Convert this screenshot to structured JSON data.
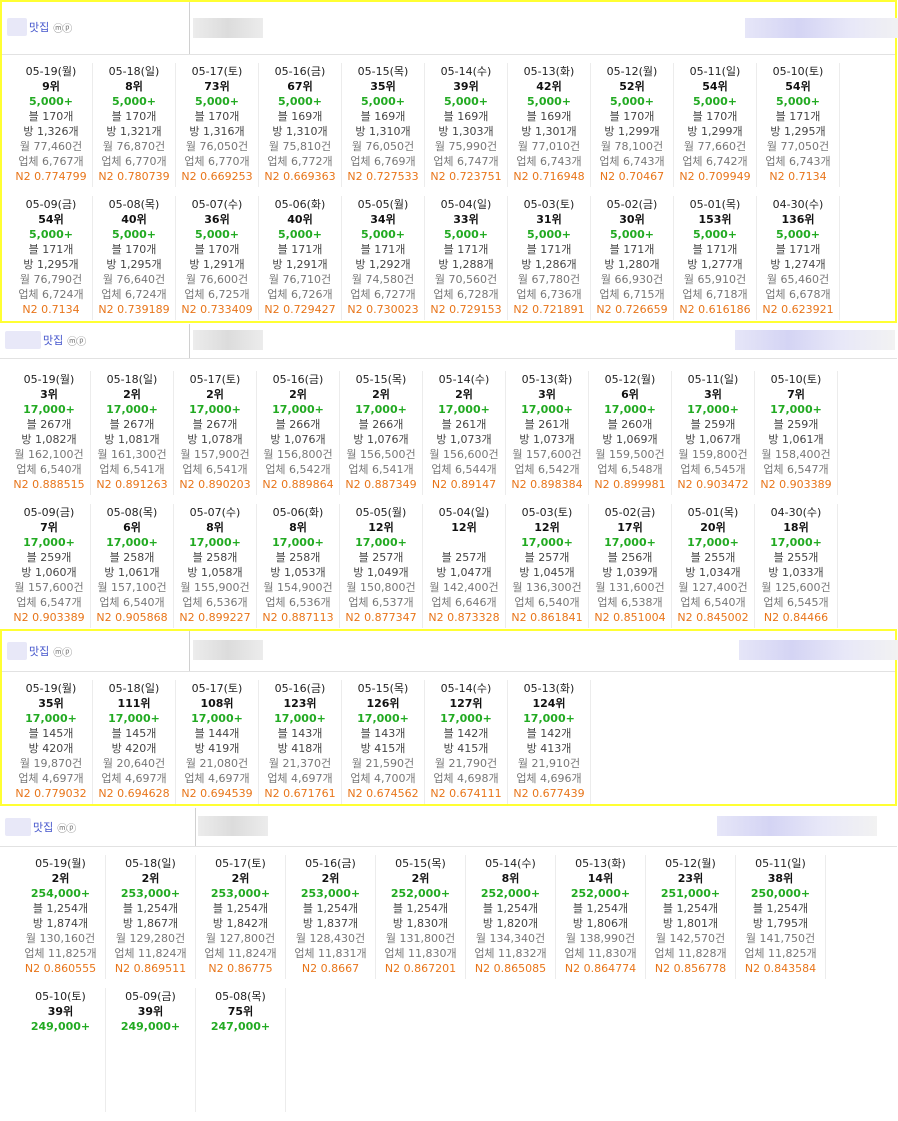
{
  "sections": [
    {
      "keyword": "맛집",
      "icons": "ⓜⓟ",
      "highlight": true,
      "days": [
        {
          "date": "05-19(월)",
          "rank": "9위",
          "searches": "5,000+",
          "blog": "블 170개",
          "visit": "방 1,326개",
          "month": "월 77,460건",
          "biz": "업체 6,767개",
          "n2": "N2 0.774799"
        },
        {
          "date": "05-18(일)",
          "rank": "8위",
          "searches": "5,000+",
          "blog": "블 170개",
          "visit": "방 1,321개",
          "month": "월 76,870건",
          "biz": "업체 6,770개",
          "n2": "N2 0.780739"
        },
        {
          "date": "05-17(토)",
          "rank": "73위",
          "searches": "5,000+",
          "blog": "블 170개",
          "visit": "방 1,316개",
          "month": "월 76,050건",
          "biz": "업체 6,770개",
          "n2": "N2 0.669253"
        },
        {
          "date": "05-16(금)",
          "rank": "67위",
          "searches": "5,000+",
          "blog": "블 169개",
          "visit": "방 1,310개",
          "month": "월 75,810건",
          "biz": "업체 6,772개",
          "n2": "N2 0.669363"
        },
        {
          "date": "05-15(목)",
          "rank": "35위",
          "searches": "5,000+",
          "blog": "블 169개",
          "visit": "방 1,310개",
          "month": "월 76,050건",
          "biz": "업체 6,769개",
          "n2": "N2 0.727533"
        },
        {
          "date": "05-14(수)",
          "rank": "39위",
          "searches": "5,000+",
          "blog": "블 169개",
          "visit": "방 1,303개",
          "month": "월 75,990건",
          "biz": "업체 6,747개",
          "n2": "N2 0.723751"
        },
        {
          "date": "05-13(화)",
          "rank": "42위",
          "searches": "5,000+",
          "blog": "블 169개",
          "visit": "방 1,301개",
          "month": "월 77,010건",
          "biz": "업체 6,743개",
          "n2": "N2 0.716948"
        },
        {
          "date": "05-12(월)",
          "rank": "52위",
          "searches": "5,000+",
          "blog": "블 170개",
          "visit": "방 1,299개",
          "month": "월 78,100건",
          "biz": "업체 6,743개",
          "n2": "N2 0.70467"
        },
        {
          "date": "05-11(일)",
          "rank": "54위",
          "searches": "5,000+",
          "blog": "블 170개",
          "visit": "방 1,299개",
          "month": "월 77,660건",
          "biz": "업체 6,742개",
          "n2": "N2 0.709949"
        },
        {
          "date": "05-10(토)",
          "rank": "54위",
          "searches": "5,000+",
          "blog": "블 171개",
          "visit": "방 1,295개",
          "month": "월 77,050건",
          "biz": "업체 6,743개",
          "n2": "N2 0.7134"
        },
        {
          "date": "05-09(금)",
          "rank": "54위",
          "searches": "5,000+",
          "blog": "블 171개",
          "visit": "방 1,295개",
          "month": "월 76,790건",
          "biz": "업체 6,724개",
          "n2": "N2 0.7134"
        },
        {
          "date": "05-08(목)",
          "rank": "40위",
          "searches": "5,000+",
          "blog": "블 170개",
          "visit": "방 1,295개",
          "month": "월 76,640건",
          "biz": "업체 6,724개",
          "n2": "N2 0.739189"
        },
        {
          "date": "05-07(수)",
          "rank": "36위",
          "searches": "5,000+",
          "blog": "블 170개",
          "visit": "방 1,291개",
          "month": "월 76,600건",
          "biz": "업체 6,725개",
          "n2": "N2 0.733409"
        },
        {
          "date": "05-06(화)",
          "rank": "40위",
          "searches": "5,000+",
          "blog": "블 171개",
          "visit": "방 1,291개",
          "month": "월 76,710건",
          "biz": "업체 6,726개",
          "n2": "N2 0.729427"
        },
        {
          "date": "05-05(월)",
          "rank": "34위",
          "searches": "5,000+",
          "blog": "블 171개",
          "visit": "방 1,292개",
          "month": "월 74,580건",
          "biz": "업체 6,727개",
          "n2": "N2 0.730023"
        },
        {
          "date": "05-04(일)",
          "rank": "33위",
          "searches": "5,000+",
          "blog": "블 171개",
          "visit": "방 1,288개",
          "month": "월 70,560건",
          "biz": "업체 6,728개",
          "n2": "N2 0.729153"
        },
        {
          "date": "05-03(토)",
          "rank": "31위",
          "searches": "5,000+",
          "blog": "블 171개",
          "visit": "방 1,286개",
          "month": "월 67,780건",
          "biz": "업체 6,736개",
          "n2": "N2 0.721891"
        },
        {
          "date": "05-02(금)",
          "rank": "30위",
          "searches": "5,000+",
          "blog": "블 171개",
          "visit": "방 1,280개",
          "month": "월 66,930건",
          "biz": "업체 6,715개",
          "n2": "N2 0.726659"
        },
        {
          "date": "05-01(목)",
          "rank": "153위",
          "searches": "5,000+",
          "blog": "블 171개",
          "visit": "방 1,277개",
          "month": "월 65,910건",
          "biz": "업체 6,718개",
          "n2": "N2 0.616186"
        },
        {
          "date": "04-30(수)",
          "rank": "136위",
          "searches": "5,000+",
          "blog": "블 171개",
          "visit": "방 1,274개",
          "month": "월 65,460건",
          "biz": "업체 6,678개",
          "n2": "N2 0.623921"
        }
      ]
    },
    {
      "keyword": "맛집",
      "icons": "ⓜⓟ",
      "highlight": false,
      "days": [
        {
          "date": "05-19(월)",
          "rank": "3위",
          "searches": "17,000+",
          "blog": "블 267개",
          "visit": "방 1,082개",
          "month": "월 162,100건",
          "biz": "업체 6,540개",
          "n2": "N2 0.888515"
        },
        {
          "date": "05-18(일)",
          "rank": "2위",
          "searches": "17,000+",
          "blog": "블 267개",
          "visit": "방 1,081개",
          "month": "월 161,300건",
          "biz": "업체 6,541개",
          "n2": "N2 0.891263"
        },
        {
          "date": "05-17(토)",
          "rank": "2위",
          "searches": "17,000+",
          "blog": "블 267개",
          "visit": "방 1,078개",
          "month": "월 157,900건",
          "biz": "업체 6,541개",
          "n2": "N2 0.890203"
        },
        {
          "date": "05-16(금)",
          "rank": "2위",
          "searches": "17,000+",
          "blog": "블 266개",
          "visit": "방 1,076개",
          "month": "월 156,800건",
          "biz": "업체 6,542개",
          "n2": "N2 0.889864"
        },
        {
          "date": "05-15(목)",
          "rank": "2위",
          "searches": "17,000+",
          "blog": "블 266개",
          "visit": "방 1,076개",
          "month": "월 156,500건",
          "biz": "업체 6,541개",
          "n2": "N2 0.887349"
        },
        {
          "date": "05-14(수)",
          "rank": "2위",
          "searches": "17,000+",
          "blog": "블 261개",
          "visit": "방 1,073개",
          "month": "월 156,600건",
          "biz": "업체 6,544개",
          "n2": "N2 0.89147"
        },
        {
          "date": "05-13(화)",
          "rank": "3위",
          "searches": "17,000+",
          "blog": "블 261개",
          "visit": "방 1,073개",
          "month": "월 157,600건",
          "biz": "업체 6,542개",
          "n2": "N2 0.898384"
        },
        {
          "date": "05-12(월)",
          "rank": "6위",
          "searches": "17,000+",
          "blog": "블 260개",
          "visit": "방 1,069개",
          "month": "월 159,500건",
          "biz": "업체 6,548개",
          "n2": "N2 0.899981"
        },
        {
          "date": "05-11(일)",
          "rank": "3위",
          "searches": "17,000+",
          "blog": "블 259개",
          "visit": "방 1,067개",
          "month": "월 159,800건",
          "biz": "업체 6,545개",
          "n2": "N2 0.903472"
        },
        {
          "date": "05-10(토)",
          "rank": "7위",
          "searches": "17,000+",
          "blog": "블 259개",
          "visit": "방 1,061개",
          "month": "월 158,400건",
          "biz": "업체 6,547개",
          "n2": "N2 0.903389"
        },
        {
          "date": "05-09(금)",
          "rank": "7위",
          "searches": "17,000+",
          "blog": "블 259개",
          "visit": "방 1,060개",
          "month": "월 157,600건",
          "biz": "업체 6,547개",
          "n2": "N2 0.903389"
        },
        {
          "date": "05-08(목)",
          "rank": "6위",
          "searches": "17,000+",
          "blog": "블 258개",
          "visit": "방 1,061개",
          "month": "월 157,100건",
          "biz": "업체 6,540개",
          "n2": "N2 0.905868"
        },
        {
          "date": "05-07(수)",
          "rank": "8위",
          "searches": "17,000+",
          "blog": "블 258개",
          "visit": "방 1,058개",
          "month": "월 155,900건",
          "biz": "업체 6,536개",
          "n2": "N2 0.899227"
        },
        {
          "date": "05-06(화)",
          "rank": "8위",
          "searches": "17,000+",
          "blog": "블 258개",
          "visit": "방 1,053개",
          "month": "월 154,900건",
          "biz": "업체 6,536개",
          "n2": "N2 0.887113"
        },
        {
          "date": "05-05(월)",
          "rank": "12위",
          "searches": "17,000+",
          "blog": "블 257개",
          "visit": "방 1,049개",
          "month": "월 150,800건",
          "biz": "업체 6,537개",
          "n2": "N2 0.877347"
        },
        {
          "date": "05-04(일)",
          "rank": "12위",
          "searches": "",
          "blog": "블 257개",
          "visit": "방 1,047개",
          "month": "월 142,400건",
          "biz": "업체 6,646개",
          "n2": "N2 0.873328"
        },
        {
          "date": "05-03(토)",
          "rank": "12위",
          "searches": "17,000+",
          "blog": "블 257개",
          "visit": "방 1,045개",
          "month": "월 136,300건",
          "biz": "업체 6,540개",
          "n2": "N2 0.861841"
        },
        {
          "date": "05-02(금)",
          "rank": "17위",
          "searches": "17,000+",
          "blog": "블 256개",
          "visit": "방 1,039개",
          "month": "월 131,600건",
          "biz": "업체 6,538개",
          "n2": "N2 0.851004"
        },
        {
          "date": "05-01(목)",
          "rank": "20위",
          "searches": "17,000+",
          "blog": "블 255개",
          "visit": "방 1,034개",
          "month": "월 127,400건",
          "biz": "업체 6,540개",
          "n2": "N2 0.845002"
        },
        {
          "date": "04-30(수)",
          "rank": "18위",
          "searches": "17,000+",
          "blog": "블 255개",
          "visit": "방 1,033개",
          "month": "월 125,600건",
          "biz": "업체 6,545개",
          "n2": "N2 0.84466"
        }
      ]
    },
    {
      "keyword": "맛집",
      "icons": "ⓜⓟ",
      "highlight": true,
      "days": [
        {
          "date": "05-19(월)",
          "rank": "35위",
          "searches": "17,000+",
          "blog": "블 145개",
          "visit": "방 420개",
          "month": "월 19,870건",
          "biz": "업체 4,697개",
          "n2": "N2 0.779032"
        },
        {
          "date": "05-18(일)",
          "rank": "111위",
          "searches": "17,000+",
          "blog": "블 145개",
          "visit": "방 420개",
          "month": "월 20,640건",
          "biz": "업체 4,697개",
          "n2": "N2 0.694628"
        },
        {
          "date": "05-17(토)",
          "rank": "108위",
          "searches": "17,000+",
          "blog": "블 144개",
          "visit": "방 419개",
          "month": "월 21,080건",
          "biz": "업체 4,697개",
          "n2": "N2 0.694539"
        },
        {
          "date": "05-16(금)",
          "rank": "123위",
          "searches": "17,000+",
          "blog": "블 143개",
          "visit": "방 418개",
          "month": "월 21,370건",
          "biz": "업체 4,697개",
          "n2": "N2 0.671761"
        },
        {
          "date": "05-15(목)",
          "rank": "126위",
          "searches": "17,000+",
          "blog": "블 143개",
          "visit": "방 415개",
          "month": "월 21,590건",
          "biz": "업체 4,700개",
          "n2": "N2 0.674562"
        },
        {
          "date": "05-14(수)",
          "rank": "127위",
          "searches": "17,000+",
          "blog": "블 142개",
          "visit": "방 415개",
          "month": "월 21,790건",
          "biz": "업체 4,698개",
          "n2": "N2 0.674111"
        },
        {
          "date": "05-13(화)",
          "rank": "124위",
          "searches": "17,000+",
          "blog": "블 142개",
          "visit": "방 413개",
          "month": "월 21,910건",
          "biz": "업체 4,696개",
          "n2": "N2 0.677439"
        }
      ]
    },
    {
      "keyword": "맛집",
      "icons": "ⓜⓟ",
      "highlight": false,
      "days": [
        {
          "date": "05-19(월)",
          "rank": "2위",
          "searches": "254,000+",
          "blog": "블 1,254개",
          "visit": "방 1,874개",
          "month": "월 130,160건",
          "biz": "업체 11,825개",
          "n2": "N2 0.860555"
        },
        {
          "date": "05-18(일)",
          "rank": "2위",
          "searches": "253,000+",
          "blog": "블 1,254개",
          "visit": "방 1,867개",
          "month": "월 129,280건",
          "biz": "업체 11,824개",
          "n2": "N2 0.869511"
        },
        {
          "date": "05-17(토)",
          "rank": "2위",
          "searches": "253,000+",
          "blog": "블 1,254개",
          "visit": "방 1,842개",
          "month": "월 127,800건",
          "biz": "업체 11,824개",
          "n2": "N2 0.86775"
        },
        {
          "date": "05-16(금)",
          "rank": "2위",
          "searches": "253,000+",
          "blog": "블 1,254개",
          "visit": "방 1,837개",
          "month": "월 128,430건",
          "biz": "업체 11,831개",
          "n2": "N2 0.8667"
        },
        {
          "date": "05-15(목)",
          "rank": "2위",
          "searches": "252,000+",
          "blog": "블 1,254개",
          "visit": "방 1,830개",
          "month": "월 131,800건",
          "biz": "업체 11,830개",
          "n2": "N2 0.867201"
        },
        {
          "date": "05-14(수)",
          "rank": "8위",
          "searches": "252,000+",
          "blog": "블 1,254개",
          "visit": "방 1,820개",
          "month": "월 134,340건",
          "biz": "업체 11,832개",
          "n2": "N2 0.865085"
        },
        {
          "date": "05-13(화)",
          "rank": "14위",
          "searches": "252,000+",
          "blog": "블 1,254개",
          "visit": "방 1,806개",
          "month": "월 138,990건",
          "biz": "업체 11,830개",
          "n2": "N2 0.864774"
        },
        {
          "date": "05-12(월)",
          "rank": "23위",
          "searches": "251,000+",
          "blog": "블 1,254개",
          "visit": "방 1,801개",
          "month": "월 142,570건",
          "biz": "업체 11,828개",
          "n2": "N2 0.856778"
        },
        {
          "date": "05-11(일)",
          "rank": "38위",
          "searches": "250,000+",
          "blog": "블 1,254개",
          "visit": "방 1,795개",
          "month": "월 141,750건",
          "biz": "업체 11,825개",
          "n2": "N2 0.843584"
        },
        {
          "date": "05-10(토)",
          "rank": "39위",
          "searches": "249,000+",
          "blog": "",
          "visit": "",
          "month": "",
          "biz": "",
          "n2": ""
        },
        {
          "date": "05-09(금)",
          "rank": "39위",
          "searches": "249,000+",
          "blog": "",
          "visit": "",
          "month": "",
          "biz": "",
          "n2": ""
        },
        {
          "date": "05-08(목)",
          "rank": "75위",
          "searches": "247,000+",
          "blog": "",
          "visit": "",
          "month": "",
          "biz": "",
          "n2": ""
        }
      ]
    }
  ]
}
